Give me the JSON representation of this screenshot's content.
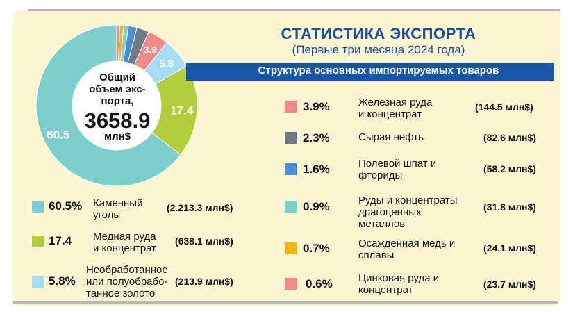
{
  "title": "СТАТИСТИКА ЭКСПОРТА",
  "subtitle": "(Первые три месяца 2024 года)",
  "band_text": "Структура основных импортируемых товаров",
  "center": {
    "line1": "Общий",
    "line2": "объем экс-",
    "line3": "порта,",
    "value": "3658.9",
    "unit": "млн$"
  },
  "colors": {
    "background": "#fdf6d3",
    "band": "#1a56a8",
    "title": "#1a4fa0",
    "coal": "#7ccfcb",
    "copper": "#b2cc3a",
    "gold": "#a6ddf5",
    "iron": "#f08a8a",
    "oil": "#6f7a85",
    "fluor": "#4a8fd6",
    "precious": "#7ccfcb",
    "cathode": "#f7b316",
    "zinc": "#f08a8a"
  },
  "legend_left": [
    {
      "pct": "60.5%",
      "name1": "Каменный",
      "name2": "уголь",
      "name3": "",
      "amount": "(2.213.3 млн$)",
      "color": "#7ccfcb"
    },
    {
      "pct": "17.4",
      "name1": "Медная руда",
      "name2": "и концентрат",
      "name3": "",
      "amount": "(638.1 млн$)",
      "color": "#b2cc3a"
    },
    {
      "pct": "5.8%",
      "name1": "Необработанное",
      "name2": "или полуобрабо-",
      "name3": "танное золото",
      "amount": "(213.9 млн$)",
      "color": "#a6ddf5"
    }
  ],
  "legend_right": [
    {
      "pct": "3.9%",
      "name1": "Железная руда",
      "name2": "и концентрат",
      "name3": "",
      "amount": "(144.5 млн$)",
      "color": "#f08a8a"
    },
    {
      "pct": "2.3%",
      "name1": "Сырая нефть",
      "name2": "",
      "name3": "",
      "amount": "(82.6 млн$)",
      "color": "#6f7a85"
    },
    {
      "pct": "1.6%",
      "name1": "Полевой шпат и",
      "name2": "фториды",
      "name3": "",
      "amount": "(58.2 млн$)",
      "color": "#4a8fd6"
    },
    {
      "pct": "0.9%",
      "name1": "Руды и концентраты",
      "name2": "драгоценных",
      "name3": "металлов",
      "amount": "(31.8 млн$)",
      "color": "#7ccfcb"
    },
    {
      "pct": "0.7%",
      "name1": "Осажденная медь и",
      "name2": "сплавы",
      "name3": "",
      "amount": "(24.1 млн$)",
      "color": "#f7b316"
    },
    {
      "pct": "0.6%",
      "name1": "Цинковая руда и",
      "name2": "концентрат",
      "name3": "",
      "amount": "(23.7 млн$)",
      "color": "#f08a8a"
    }
  ],
  "chart_data": {
    "type": "pie",
    "title": "",
    "slices": [
      {
        "name": "Каменный уголь",
        "value": 60.5,
        "label": "60.5",
        "color": "#7ccfcb"
      },
      {
        "name": "Медная руда и концентрат",
        "value": 17.4,
        "label": "17.4",
        "color": "#b2cc3a"
      },
      {
        "name": "Необработанное или полуобработанное золото",
        "value": 5.8,
        "label": "5.8",
        "color": "#a6ddf5"
      },
      {
        "name": "Железная руда и концентрат",
        "value": 3.9,
        "label": "3.9",
        "color": "#f08a8a"
      },
      {
        "name": "Сырая нефть",
        "value": 2.3,
        "label": "",
        "color": "#6f7a85"
      },
      {
        "name": "Полевой шпат и фториды",
        "value": 1.6,
        "label": "",
        "color": "#4a8fd6"
      },
      {
        "name": "Руды и концентраты драгоценных металлов",
        "value": 0.9,
        "label": "",
        "color": "#7ccfcb"
      },
      {
        "name": "Осажденная медь и сплавы",
        "value": 0.7,
        "label": "",
        "color": "#f7b316"
      },
      {
        "name": "Цинковая руда и концентрат",
        "value": 0.6,
        "label": "",
        "color": "#f08a8a"
      }
    ]
  }
}
